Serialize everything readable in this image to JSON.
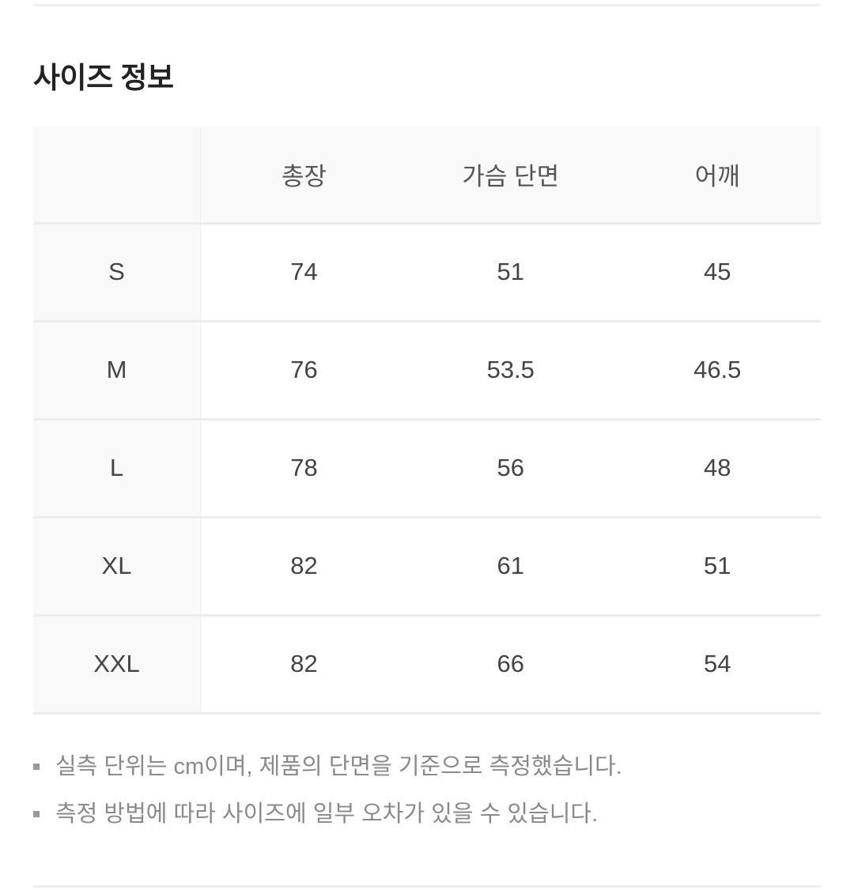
{
  "title": "사이즈 정보",
  "table": {
    "headers": [
      "",
      "총장",
      "가슴 단면",
      "어깨"
    ],
    "rows": [
      [
        "S",
        "74",
        "51",
        "45"
      ],
      [
        "M",
        "76",
        "53.5",
        "46.5"
      ],
      [
        "L",
        "78",
        "56",
        "48"
      ],
      [
        "XL",
        "82",
        "61",
        "51"
      ],
      [
        "XXL",
        "82",
        "66",
        "54"
      ]
    ]
  },
  "notes": [
    "실측 단위는 cm이며, 제품의 단면을 기준으로 측정했습니다.",
    "측정 방법에 따라 사이즈에 일부 오차가 있을 수 있습니다."
  ]
}
